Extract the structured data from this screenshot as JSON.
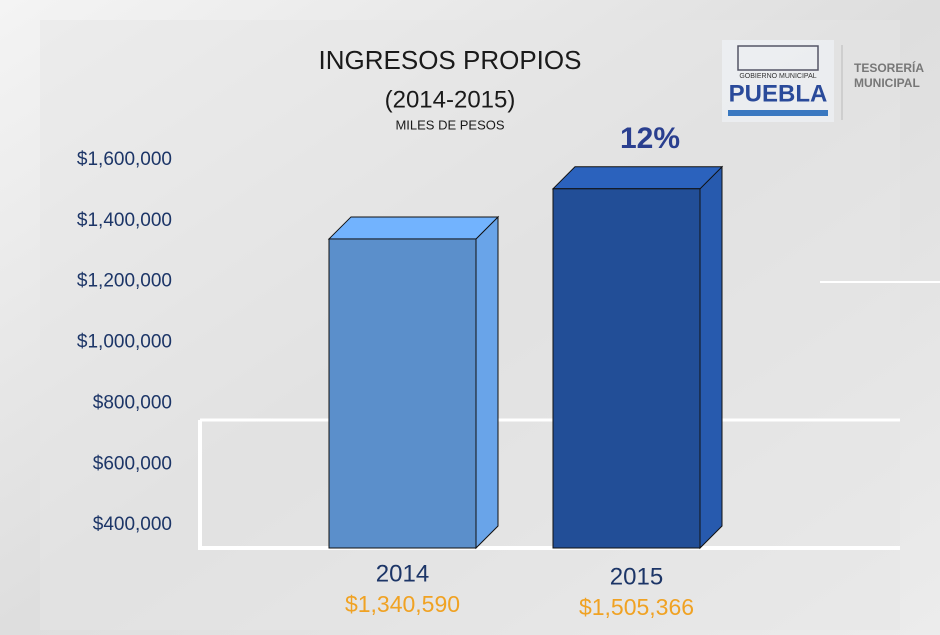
{
  "chart_data": {
    "type": "bar3d",
    "title": "INGRESOS PROPIOS",
    "subtitle": "(2014-2015)",
    "unit_label": "MILES DE PESOS",
    "annotation": "12%",
    "categories": [
      "2014",
      "2015"
    ],
    "values": [
      1340590,
      1505366
    ],
    "value_labels": [
      "$1,340,590",
      "$1,505,366"
    ],
    "colors": [
      "#5b8fcb",
      "#224e97"
    ],
    "ylim": [
      325000,
      1600000
    ],
    "yticks": [
      {
        "value": 400000,
        "label": "$400,000"
      },
      {
        "value": 600000,
        "label": "$600,000"
      },
      {
        "value": 800000,
        "label": "$800,000"
      },
      {
        "value": 1000000,
        "label": "$1,000,000"
      },
      {
        "value": 1200000,
        "label": "$1,200,000"
      },
      {
        "value": 1400000,
        "label": "$1,400,000"
      },
      {
        "value": 1600000,
        "label": "$1,600,000"
      }
    ]
  },
  "logo": {
    "top": "GOBIERNO MUNICIPAL",
    "name": "PUEBLA"
  },
  "department": [
    "TESORERÍA",
    "MUNICIPAL"
  ]
}
